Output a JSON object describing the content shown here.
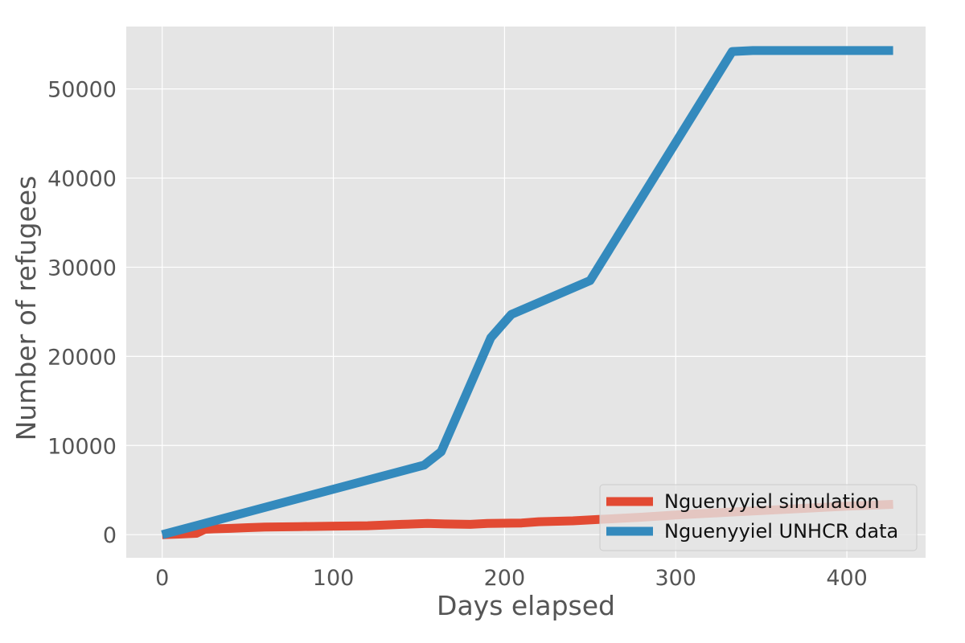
{
  "chart_data": {
    "type": "line",
    "title": "",
    "xlabel": "Days elapsed",
    "ylabel": "Number of refugees",
    "xlim": [
      -21,
      446
    ],
    "ylim": [
      -2600,
      57000
    ],
    "xticks": [
      0,
      100,
      200,
      300,
      400
    ],
    "yticks": [
      0,
      10000,
      20000,
      30000,
      40000,
      50000
    ],
    "grid": true,
    "background": "#e5e5e5",
    "grid_color": "#ffffff",
    "legend_position": "lower-right",
    "series": [
      {
        "name": "Nguenyyiel simulation",
        "color": "#e24a33",
        "x": [
          0,
          10,
          20,
          25,
          30,
          40,
          50,
          60,
          80,
          100,
          120,
          140,
          155,
          165,
          180,
          190,
          210,
          220,
          240,
          255,
          280,
          300,
          330,
          360,
          400,
          427
        ],
        "y": [
          0,
          60,
          150,
          600,
          650,
          700,
          780,
          850,
          900,
          950,
          1000,
          1150,
          1250,
          1200,
          1150,
          1250,
          1300,
          1450,
          1550,
          1700,
          1950,
          2200,
          2500,
          2800,
          3200,
          3400
        ]
      },
      {
        "name": "Nguenyyiel UNHCR data",
        "color": "#348abd",
        "x": [
          0,
          153,
          163,
          192,
          204,
          250,
          333,
          345,
          427
        ],
        "y": [
          0,
          7800,
          9300,
          22100,
          24700,
          28500,
          54200,
          54300,
          54300
        ]
      }
    ]
  }
}
